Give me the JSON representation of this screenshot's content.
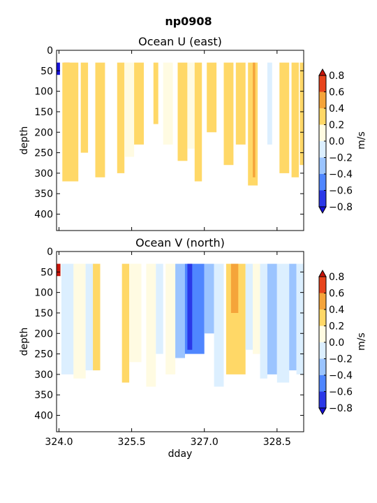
{
  "suptitle": "np0908",
  "colors": {
    "levels": [
      -0.8,
      -0.6,
      -0.4,
      -0.2,
      0.0,
      0.2,
      0.4,
      0.6,
      0.8
    ],
    "bins": [
      "#2a38e8",
      "#4f86ff",
      "#9bc4ff",
      "#dcefff",
      "#fffbe2",
      "#ffd867",
      "#f5a43a",
      "#e8441c"
    ],
    "under": "#1510d8",
    "over": "#c8140a"
  },
  "colorbar": {
    "label": "m/s",
    "ticks": [
      "0.8",
      "0.6",
      "0.4",
      "0.2",
      "0.0",
      "−0.2",
      "−0.4",
      "−0.6",
      "−0.8"
    ]
  },
  "chart_data": [
    {
      "type": "heatmap",
      "title": "Ocean U (east)",
      "ylabel": "depth",
      "xlabel": "",
      "xlim": [
        323.95,
        329.05
      ],
      "ylim": [
        440,
        0
      ],
      "yticks": [
        "0",
        "50",
        "100",
        "150",
        "200",
        "250",
        "300",
        "350",
        "400"
      ],
      "xticks": [],
      "yvalues": [
        0,
        50,
        100,
        150,
        200,
        250,
        300,
        350,
        400
      ],
      "xvalues": [
        324.0,
        325.5,
        327.0,
        328.5
      ],
      "top_depth": 30,
      "columns": [
        {
          "x0": 323.95,
          "x1": 324.02,
          "v": -0.9,
          "bottom": 60
        },
        {
          "x0": 324.1,
          "x1": 324.22,
          "v": 0.7,
          "bottom": 310
        },
        {
          "x0": 324.07,
          "x1": 324.4,
          "v": 0.3,
          "bottom": 320
        },
        {
          "x0": 324.45,
          "x1": 324.6,
          "v": 0.3,
          "bottom": 250
        },
        {
          "x0": 324.75,
          "x1": 324.95,
          "v": 0.3,
          "bottom": 310
        },
        {
          "x0": 325.2,
          "x1": 325.35,
          "v": 0.3,
          "bottom": 300
        },
        {
          "x0": 325.35,
          "x1": 325.55,
          "v": 0.1,
          "bottom": 260
        },
        {
          "x0": 325.55,
          "x1": 325.75,
          "v": 0.3,
          "bottom": 230
        },
        {
          "x0": 325.95,
          "x1": 326.05,
          "v": 0.3,
          "bottom": 180
        },
        {
          "x0": 326.15,
          "x1": 326.35,
          "v": 0.1,
          "bottom": 230
        },
        {
          "x0": 326.45,
          "x1": 326.65,
          "v": 0.3,
          "bottom": 270
        },
        {
          "x0": 326.65,
          "x1": 326.8,
          "v": 0.1,
          "bottom": 240
        },
        {
          "x0": 326.8,
          "x1": 326.95,
          "v": 0.3,
          "bottom": 320
        },
        {
          "x0": 327.05,
          "x1": 327.25,
          "v": 0.3,
          "bottom": 200
        },
        {
          "x0": 327.4,
          "x1": 327.6,
          "v": 0.3,
          "bottom": 280
        },
        {
          "x0": 327.65,
          "x1": 327.85,
          "v": 0.3,
          "bottom": 230
        },
        {
          "x0": 327.9,
          "x1": 328.1,
          "v": 0.3,
          "bottom": 330
        },
        {
          "x0": 328.0,
          "x1": 328.05,
          "v": 0.5,
          "bottom": 310
        },
        {
          "x0": 328.3,
          "x1": 328.4,
          "v": -0.1,
          "bottom": 230
        },
        {
          "x0": 328.55,
          "x1": 328.75,
          "v": 0.3,
          "bottom": 300
        },
        {
          "x0": 328.8,
          "x1": 328.95,
          "v": 0.3,
          "bottom": 310
        },
        {
          "x0": 328.97,
          "x1": 329.05,
          "v": 0.3,
          "bottom": 280
        }
      ]
    },
    {
      "type": "heatmap",
      "title": "Ocean V (north)",
      "ylabel": "depth",
      "xlabel": "dday",
      "xlim": [
        323.95,
        329.05
      ],
      "ylim": [
        440,
        0
      ],
      "yticks": [
        "0",
        "50",
        "100",
        "150",
        "200",
        "250",
        "300",
        "350",
        "400"
      ],
      "xticks": [
        "324.0",
        "325.5",
        "327.0",
        "328.5"
      ],
      "yvalues": [
        0,
        50,
        100,
        150,
        200,
        250,
        300,
        350,
        400
      ],
      "xvalues": [
        324.0,
        325.5,
        327.0,
        328.5
      ],
      "top_depth": 30,
      "columns": [
        {
          "x0": 323.95,
          "x1": 324.03,
          "v": 0.9,
          "bottom": 60
        },
        {
          "x0": 324.05,
          "x1": 324.3,
          "v": -0.1,
          "bottom": 300
        },
        {
          "x0": 324.3,
          "x1": 324.55,
          "v": 0.1,
          "bottom": 310
        },
        {
          "x0": 324.55,
          "x1": 324.8,
          "v": -0.1,
          "bottom": 290
        },
        {
          "x0": 324.7,
          "x1": 324.85,
          "v": 0.3,
          "bottom": 290
        },
        {
          "x0": 325.3,
          "x1": 325.45,
          "v": 0.3,
          "bottom": 320
        },
        {
          "x0": 325.45,
          "x1": 325.7,
          "v": 0.1,
          "bottom": 270
        },
        {
          "x0": 325.8,
          "x1": 326.0,
          "v": 0.1,
          "bottom": 330
        },
        {
          "x0": 326.0,
          "x1": 326.15,
          "v": -0.1,
          "bottom": 250
        },
        {
          "x0": 326.2,
          "x1": 326.4,
          "v": 0.1,
          "bottom": 300
        },
        {
          "x0": 326.4,
          "x1": 326.6,
          "v": -0.3,
          "bottom": 260
        },
        {
          "x0": 326.6,
          "x1": 327.0,
          "v": -0.5,
          "bottom": 250
        },
        {
          "x0": 326.65,
          "x1": 326.75,
          "v": -0.7,
          "bottom": 240
        },
        {
          "x0": 327.0,
          "x1": 327.2,
          "v": -0.3,
          "bottom": 200
        },
        {
          "x0": 327.2,
          "x1": 327.4,
          "v": -0.1,
          "bottom": 330
        },
        {
          "x0": 327.45,
          "x1": 327.85,
          "v": 0.3,
          "bottom": 300
        },
        {
          "x0": 327.55,
          "x1": 327.7,
          "v": 0.5,
          "bottom": 150
        },
        {
          "x0": 327.85,
          "x1": 328.0,
          "v": -0.1,
          "bottom": 240
        },
        {
          "x0": 328.0,
          "x1": 328.15,
          "v": 0.1,
          "bottom": 250
        },
        {
          "x0": 328.15,
          "x1": 328.3,
          "v": -0.1,
          "bottom": 310
        },
        {
          "x0": 328.3,
          "x1": 328.5,
          "v": -0.3,
          "bottom": 300
        },
        {
          "x0": 328.5,
          "x1": 328.75,
          "v": -0.1,
          "bottom": 320
        },
        {
          "x0": 328.75,
          "x1": 328.9,
          "v": -0.3,
          "bottom": 290
        },
        {
          "x0": 328.9,
          "x1": 329.05,
          "v": -0.1,
          "bottom": 300
        }
      ]
    }
  ]
}
